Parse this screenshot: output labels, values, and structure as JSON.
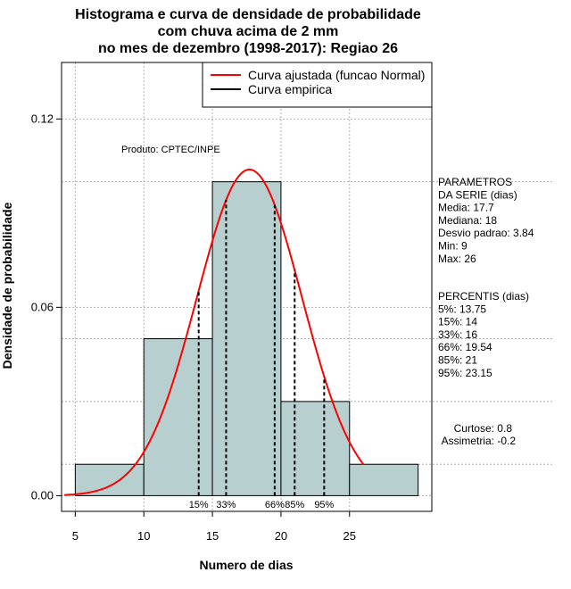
{
  "chart_data": {
    "type": "histogram",
    "title_lines": [
      "Histograma e curva de densidade de probabilidade",
      "com chuva acima de 2 mm",
      "no mes de dezembro (1998-2017): Regiao 26"
    ],
    "xlabel": "Numero de dias",
    "ylabel": "Densidade de probabilidade",
    "xlim": [
      4,
      31
    ],
    "ylim": [
      -0.005,
      0.138
    ],
    "x_ticks": [
      5,
      10,
      15,
      20,
      25
    ],
    "y_ticks": [
      0.0,
      0.06,
      0.12
    ],
    "y_tick_labels": [
      "0.00",
      "0.06",
      "0.12"
    ],
    "bins": [
      {
        "start": 5,
        "end": 10,
        "density": 0.01
      },
      {
        "start": 10,
        "end": 15,
        "density": 0.05
      },
      {
        "start": 15,
        "end": 20,
        "density": 0.1
      },
      {
        "start": 20,
        "end": 25,
        "density": 0.03
      },
      {
        "start": 25,
        "end": 30,
        "density": 0.01
      }
    ],
    "normal_curve": {
      "mean": 17.7,
      "sd": 3.84,
      "x_from": 4.2,
      "x_to": 26
    },
    "percentiles": [
      {
        "label": "15%",
        "value": 14
      },
      {
        "label": "33%",
        "value": 16
      },
      {
        "label": "66%",
        "value": 19.54
      },
      {
        "label": "85%",
        "value": 21
      },
      {
        "label": "95%",
        "value": 23.15
      }
    ],
    "legend": [
      {
        "label": "Curva ajustada (funcao Normal)",
        "color": "#ff0000"
      },
      {
        "label": "Curva empirica",
        "color": "#000000"
      }
    ],
    "product_label": "Produto: CPTEC/INPE",
    "colors": {
      "bar_fill": "#b8cfcf",
      "curve": "#ff0000",
      "grid": "#b0b0b0"
    }
  },
  "side_panel": {
    "params_lines": [
      "PARAMETROS",
      "DA SERIE (dias)",
      "   Media: 17.7",
      "   Mediana: 18",
      "   Desvio padrao: 3.84",
      "   Min: 9",
      "   Max: 26"
    ],
    "percent_lines": [
      "PERCENTIS (dias)",
      "   5%: 13.75",
      "   15%: 14",
      "   33%: 16",
      "   66%: 19.54",
      "   85%: 21",
      "   95%: 23.15"
    ],
    "curtose": "Curtose: 0.8",
    "assimetria": "Assimetria: -0.2"
  }
}
